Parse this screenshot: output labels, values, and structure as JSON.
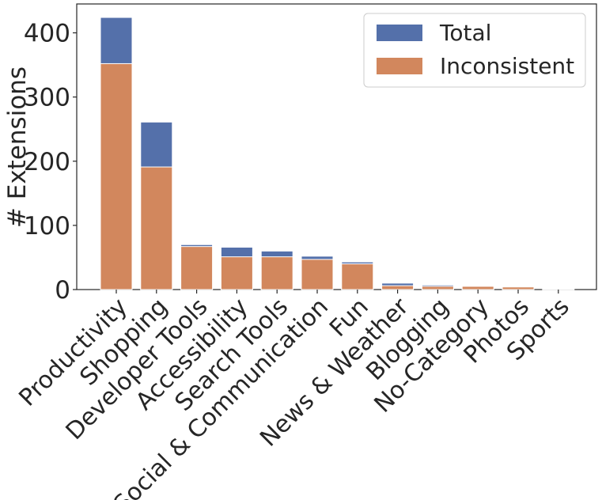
{
  "chart_data": {
    "type": "bar",
    "title": "",
    "xlabel": "",
    "ylabel": "# Extensions",
    "ylim": [
      0,
      445
    ],
    "yticks": [
      0,
      100,
      200,
      300,
      400
    ],
    "grid": false,
    "legend_position": "top-right",
    "categories": [
      "Productivity",
      "Shopping",
      "Developer Tools",
      "Accessibility",
      "Search Tools",
      "Social & Communication",
      "Fun",
      "News & Weather",
      "Blogging",
      "No-Category",
      "Photos",
      "Sports"
    ],
    "series": [
      {
        "name": "Total",
        "color": "#5470aa",
        "values": [
          424,
          261,
          70,
          66,
          60,
          52,
          43,
          10,
          7,
          6,
          5,
          1
        ]
      },
      {
        "name": "Inconsistent",
        "color": "#d2875d",
        "values": [
          352,
          191,
          67,
          51,
          51,
          47,
          40,
          6,
          5,
          5,
          4,
          0
        ]
      }
    ]
  }
}
